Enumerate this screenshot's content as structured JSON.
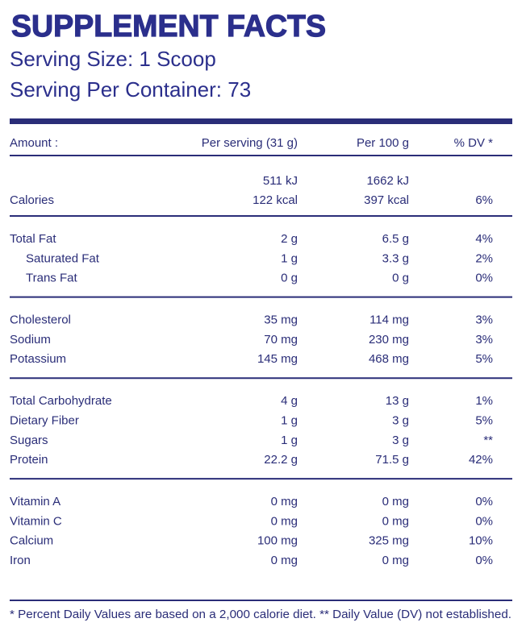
{
  "title": "SUPPLEMENT FACTS",
  "serving_size": "Serving Size: 1 Scoop",
  "servings_per_container": "Serving Per Container: 73",
  "table": {
    "headers": [
      "Amount :",
      "Per serving (31 g)",
      "Per 100 g",
      "% DV *"
    ],
    "energy": {
      "label": "Calories",
      "per_serving": [
        "511 kJ",
        "122 kcal"
      ],
      "per_100g": [
        "1662 kJ",
        "397 kcal"
      ],
      "dv": "6%"
    },
    "sections": [
      {
        "rows": [
          {
            "cells": [
              "Total Fat",
              "2 g",
              "6.5 g",
              "4%"
            ]
          },
          {
            "cells": [
              "Saturated Fat",
              "1 g",
              "3.3 g",
              "2%"
            ],
            "sub": true
          },
          {
            "cells": [
              "Trans Fat",
              "0 g",
              "0 g",
              "0%"
            ],
            "sub": true
          }
        ]
      },
      {
        "rows": [
          {
            "cells": [
              "Cholesterol",
              "35 mg",
              "114 mg",
              "3%"
            ]
          },
          {
            "cells": [
              "Sodium",
              "70 mg",
              "230 mg",
              "3%"
            ]
          },
          {
            "cells": [
              "Potassium",
              "145 mg",
              "468 mg",
              "5%"
            ]
          }
        ]
      },
      {
        "rows": [
          {
            "cells": [
              "Total Carbohydrate",
              "4 g",
              "13 g",
              "1%"
            ]
          },
          {
            "cells": [
              "Dietary Fiber",
              "1 g",
              "3 g",
              "5%"
            ]
          },
          {
            "cells": [
              "Sugars",
              "1 g",
              "3 g",
              "**"
            ]
          },
          {
            "cells": [
              "Protein",
              "22.2 g",
              "71.5 g",
              "42%"
            ]
          }
        ]
      },
      {
        "rows": [
          {
            "cells": [
              "Vitamin A",
              "0 mg",
              "0 mg",
              "0%"
            ]
          },
          {
            "cells": [
              "Vitamin C",
              "0 mg",
              "0 mg",
              "0%"
            ]
          },
          {
            "cells": [
              "Calcium",
              "100 mg",
              "325 mg",
              "10%"
            ]
          },
          {
            "cells": [
              "Iron",
              "0 mg",
              "0 mg",
              "0%"
            ]
          }
        ]
      }
    ]
  },
  "footnote": "* Percent Daily Values are based on a 2,000 calorie diet. ** Daily Value (DV) not established."
}
